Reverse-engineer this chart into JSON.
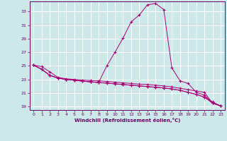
{
  "xlabel": "Windchill (Refroidissement éolien,°C)",
  "background_color": "#cce8e8",
  "grid_color": "#ffffff",
  "line_color": "#aa0077",
  "xlim": [
    -0.5,
    23.5
  ],
  "ylim": [
    18.5,
    34.5
  ],
  "yticks": [
    19,
    21,
    23,
    25,
    27,
    29,
    31,
    33
  ],
  "xticks": [
    0,
    1,
    2,
    3,
    4,
    5,
    6,
    7,
    8,
    9,
    10,
    11,
    12,
    13,
    14,
    15,
    16,
    17,
    18,
    19,
    20,
    21,
    22,
    23
  ],
  "line1": [
    25.1,
    24.9,
    24.1,
    23.3,
    23.1,
    23.0,
    22.9,
    22.85,
    22.8,
    22.7,
    22.6,
    22.5,
    22.4,
    22.3,
    22.25,
    22.15,
    22.05,
    21.9,
    21.7,
    21.5,
    21.3,
    21.1,
    19.5,
    19.1
  ],
  "line2": [
    25.1,
    24.5,
    23.6,
    23.2,
    23.0,
    22.9,
    22.75,
    22.65,
    22.55,
    22.45,
    22.35,
    22.25,
    22.15,
    22.05,
    21.95,
    21.85,
    21.75,
    21.6,
    21.4,
    21.1,
    20.8,
    20.4,
    19.7,
    19.1
  ],
  "line3": [
    25.1,
    24.5,
    23.6,
    23.2,
    23.0,
    22.9,
    22.75,
    22.65,
    22.55,
    22.45,
    22.35,
    22.25,
    22.15,
    22.05,
    21.95,
    21.85,
    21.75,
    21.6,
    21.4,
    21.1,
    20.8,
    20.4,
    19.5,
    19.1
  ],
  "line4": [
    25.1,
    24.5,
    23.6,
    23.2,
    23.0,
    22.9,
    22.75,
    22.65,
    22.55,
    25.0,
    27.0,
    29.1,
    31.5,
    32.5,
    34.0,
    34.2,
    33.3,
    24.7,
    22.8,
    22.4,
    21.1,
    20.7,
    19.5,
    19.1
  ]
}
